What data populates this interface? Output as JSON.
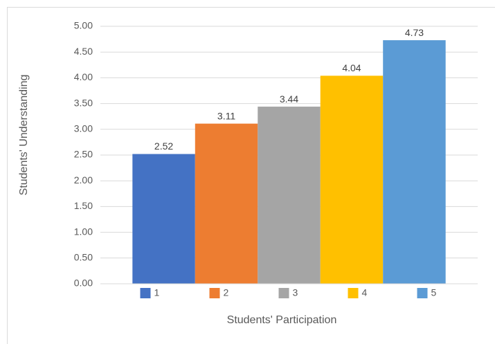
{
  "chart_data": {
    "type": "bar",
    "x_label": "Students' Participation",
    "y_label": "Students' Understanding",
    "categories": [
      null
    ],
    "series": [
      {
        "name": "1",
        "color": "#4472c4",
        "values": [
          2.52
        ]
      },
      {
        "name": "2",
        "color": "#ed7d31",
        "values": [
          3.11
        ]
      },
      {
        "name": "3",
        "color": "#a5a5a5",
        "values": [
          3.44
        ]
      },
      {
        "name": "4",
        "color": "#ffc000",
        "values": [
          4.04
        ]
      },
      {
        "name": "5",
        "color": "#5b9bd5",
        "values": [
          4.73
        ]
      }
    ],
    "ylim": [
      0,
      5
    ],
    "yticks": [
      {
        "value": 0,
        "label": "0.00"
      },
      {
        "value": 0.5,
        "label": "0.50"
      },
      {
        "value": 1,
        "label": "1.00"
      },
      {
        "value": 1.5,
        "label": "1.50"
      },
      {
        "value": 2,
        "label": "2.00"
      },
      {
        "value": 2.5,
        "label": "2.50"
      },
      {
        "value": 3,
        "label": "3.00"
      },
      {
        "value": 3.5,
        "label": "3.50"
      },
      {
        "value": 4,
        "label": "4.00"
      },
      {
        "value": 4.5,
        "label": "4.50"
      },
      {
        "value": 5,
        "label": "5.00"
      }
    ],
    "grid": true,
    "legend": "bottom"
  }
}
